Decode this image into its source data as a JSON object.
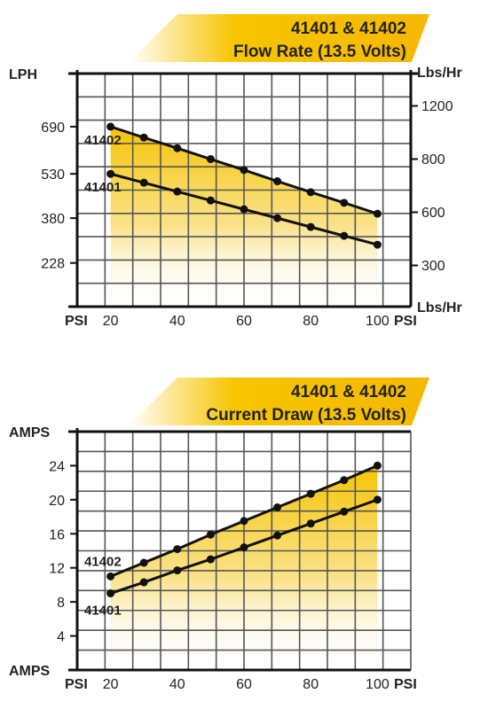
{
  "chart_data": [
    {
      "type": "line",
      "banner": {
        "line1": "41401 & 41402",
        "line2": "Flow Rate (13.5 Volts)"
      },
      "left_axis": {
        "top_label": "LPH",
        "ticks": [
          690,
          530,
          380,
          228
        ],
        "tick_labels": [
          "690",
          "530",
          "380",
          "228"
        ]
      },
      "right_axis": {
        "top_label": "Lbs/Hr",
        "bottom_label": "Lbs/Hr",
        "ticks": [
          1200,
          800,
          600,
          300
        ],
        "tick_labels": [
          "1200",
          "800",
          "600",
          "300"
        ]
      },
      "x_axis": {
        "left_label": "PSI",
        "right_label": "PSI",
        "ticks": [
          20,
          40,
          60,
          80,
          100
        ],
        "tick_labels": [
          "20",
          "40",
          "60",
          "80",
          "100"
        ]
      },
      "x": [
        20,
        30,
        40,
        50,
        60,
        70,
        80,
        90,
        100
      ],
      "series": [
        {
          "name": "41402",
          "values": [
            690,
            653,
            617,
            580,
            543,
            505,
            468,
            432,
            395
          ]
        },
        {
          "name": "41401",
          "values": [
            530,
            500,
            470,
            440,
            410,
            380,
            350,
            320,
            290
          ]
        }
      ],
      "ylabel": "LPH",
      "xlabel": "PSI",
      "xlim": [
        10,
        110
      ],
      "ylim": [
        80,
        870
      ],
      "grid": true,
      "fill_color": "#f5c400"
    },
    {
      "type": "line",
      "banner": {
        "line1": "41401 & 41402",
        "line2": "Current Draw (13.5 Volts)"
      },
      "left_axis": {
        "top_label": "AMPS",
        "bottom_label": "AMPS",
        "ticks": [
          24,
          20,
          16,
          12,
          8,
          4
        ],
        "tick_labels": [
          "24",
          "20",
          "16",
          "12",
          "8",
          "4"
        ]
      },
      "x_axis": {
        "left_label": "PSI",
        "right_label": "PSI",
        "ticks": [
          20,
          40,
          60,
          80,
          100
        ],
        "tick_labels": [
          "20",
          "40",
          "60",
          "80",
          "100"
        ]
      },
      "x": [
        20,
        30,
        40,
        50,
        60,
        70,
        80,
        90,
        100
      ],
      "series": [
        {
          "name": "41402",
          "values": [
            11,
            12.6,
            14.2,
            15.9,
            17.5,
            19.1,
            20.7,
            22.3,
            24
          ]
        },
        {
          "name": "41401",
          "values": [
            9,
            10.3,
            11.7,
            13.0,
            14.4,
            15.8,
            17.2,
            18.6,
            20
          ]
        }
      ],
      "ylabel": "AMPS",
      "xlabel": "PSI",
      "xlim": [
        10,
        110
      ],
      "ylim": [
        0,
        28
      ],
      "grid": true,
      "fill_color": "#f5c400"
    }
  ]
}
